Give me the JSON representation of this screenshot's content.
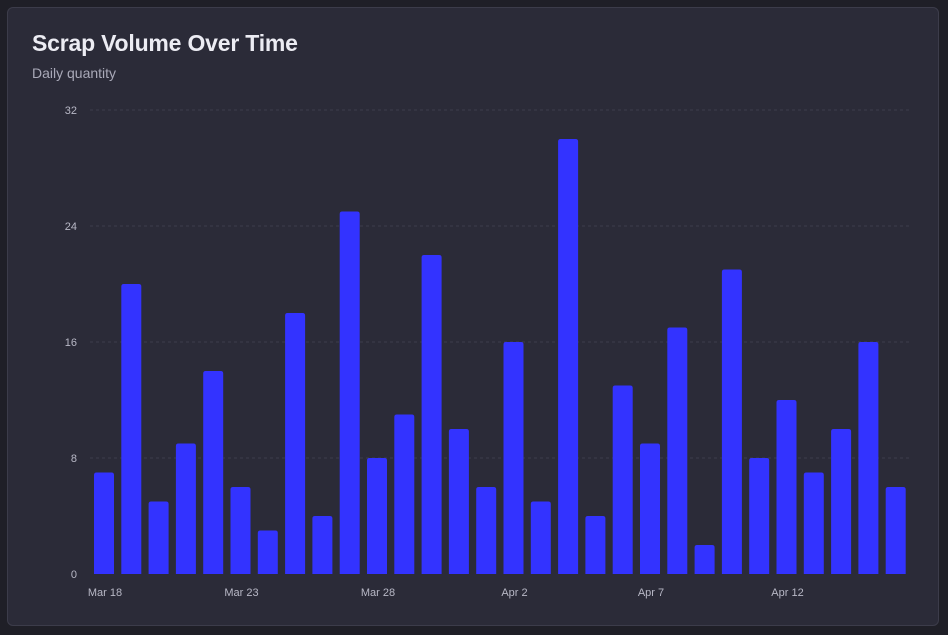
{
  "chart_data": {
    "type": "bar",
    "title": "Scrap Volume Over Time",
    "subtitle": "Daily quantity",
    "xlabel": "",
    "ylabel": "",
    "ylim": [
      0,
      32
    ],
    "y_ticks": [
      0,
      8,
      16,
      24,
      32
    ],
    "x_tick_labels": [
      {
        "label": "Mar 18",
        "category": "Mar 18"
      },
      {
        "label": "Mar 23",
        "category": "Mar 23"
      },
      {
        "label": "Mar 28",
        "category": "Mar 28"
      },
      {
        "label": "Apr 2",
        "category": "Apr 2"
      },
      {
        "label": "Apr 7",
        "category": "Apr 7"
      },
      {
        "label": "Apr 12",
        "category": "Apr 12"
      }
    ],
    "categories": [
      "Mar 18",
      "Mar 19",
      "Mar 20",
      "Mar 21",
      "Mar 22",
      "Mar 23",
      "Mar 24",
      "Mar 25",
      "Mar 26",
      "Mar 27",
      "Mar 28",
      "Mar 29",
      "Mar 30",
      "Mar 31",
      "Apr 1",
      "Apr 2",
      "Apr 3",
      "Apr 4",
      "Apr 5",
      "Apr 6",
      "Apr 7",
      "Apr 8",
      "Apr 9",
      "Apr 10",
      "Apr 11",
      "Apr 12",
      "Apr 13",
      "Apr 14",
      "Apr 15",
      "Apr 16",
      "Apr 17"
    ],
    "values": [
      7,
      20,
      5,
      9,
      14,
      6,
      3,
      18,
      4,
      25,
      8,
      11,
      22,
      10,
      6,
      16,
      5,
      30,
      4,
      13,
      9,
      17,
      2,
      21,
      8,
      12,
      7,
      10,
      16,
      6,
      0
    ],
    "grid": true,
    "legend": "none",
    "colors": {
      "bar": "#3333ff",
      "grid": "#3d3d4c",
      "axis_text": "#b8b8c6"
    }
  }
}
